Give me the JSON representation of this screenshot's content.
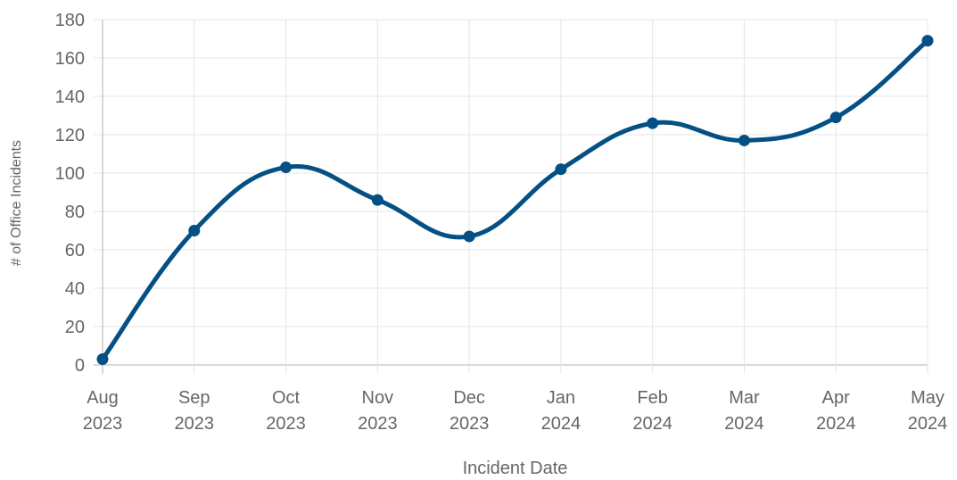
{
  "chart_data": {
    "type": "line",
    "title": "",
    "xlabel": "Incident Date",
    "ylabel": "# of Office Incidents",
    "categories": [
      [
        "Aug",
        "2023"
      ],
      [
        "Sep",
        "2023"
      ],
      [
        "Oct",
        "2023"
      ],
      [
        "Nov",
        "2023"
      ],
      [
        "Dec",
        "2023"
      ],
      [
        "Jan",
        "2024"
      ],
      [
        "Feb",
        "2024"
      ],
      [
        "Mar",
        "2024"
      ],
      [
        "Apr",
        "2024"
      ],
      [
        "May",
        "2024"
      ]
    ],
    "series": [
      {
        "values": [
          3,
          70,
          103,
          86,
          67,
          102,
          126,
          117,
          129,
          169
        ]
      }
    ],
    "ylim": [
      0,
      180
    ],
    "yticks": [
      0,
      20,
      40,
      60,
      80,
      100,
      120,
      140,
      160,
      180
    ],
    "grid": true,
    "legend": "none",
    "colors": {
      "line": "#044f84",
      "grid": "#e5e5e5",
      "axis": "#b3b3b3",
      "text": "#666666"
    }
  }
}
